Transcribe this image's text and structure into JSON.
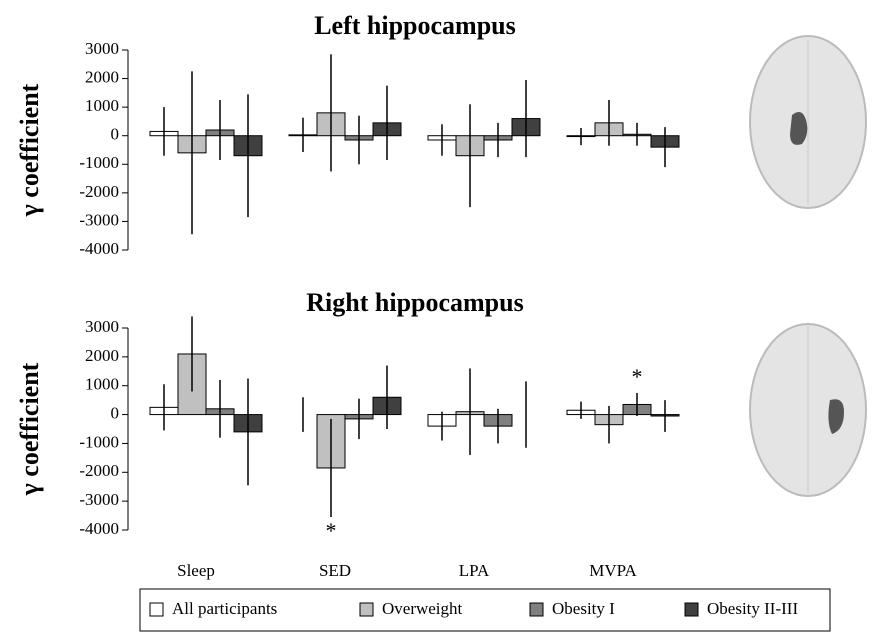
{
  "chart_data": [
    {
      "type": "bar",
      "title": "Left hippocampus",
      "ylabel": "γ coefficient",
      "ylim": [
        -4000,
        3000
      ],
      "yticks": [
        3000,
        2000,
        1000,
        0,
        -1000,
        -2000,
        -3000,
        -4000
      ],
      "series": [
        {
          "name": "All participants",
          "color": "#ffffff",
          "values": [
            150,
            30,
            -150,
            -30
          ],
          "errors": [
            850,
            600,
            550,
            300
          ]
        },
        {
          "name": "Overweight",
          "color": "#c0c0c0",
          "values": [
            -600,
            800,
            -700,
            450
          ],
          "errors": [
            2850,
            2050,
            1800,
            800
          ]
        },
        {
          "name": "Obesity I",
          "color": "#808080",
          "values": [
            200,
            -150,
            -150,
            50
          ],
          "errors": [
            1050,
            850,
            600,
            400
          ]
        },
        {
          "name": "Obesity II-III",
          "color": "#404040",
          "values": [
            -700,
            450,
            600,
            -400
          ],
          "errors": [
            2150,
            1300,
            1350,
            700
          ]
        }
      ]
    },
    {
      "type": "bar",
      "title": "Right hippocampus",
      "ylabel": "γ coefficient",
      "ylim": [
        -4000,
        3000
      ],
      "yticks": [
        3000,
        2000,
        1000,
        0,
        -1000,
        -2000,
        -3000,
        -4000
      ],
      "categories": [
        "Sleep",
        "SED",
        "LPA",
        "MVPA"
      ],
      "series": [
        {
          "values": [
            250,
            0,
            -400,
            150
          ],
          "errors": [
            800,
            600,
            500,
            300
          ]
        },
        {
          "values": [
            2100,
            -1850,
            100,
            -350
          ],
          "errors": [
            1300,
            1700,
            1500,
            650
          ]
        },
        {
          "values": [
            200,
            -150,
            -400,
            350
          ],
          "errors": [
            1000,
            700,
            600,
            400
          ]
        },
        {
          "values": [
            -600,
            600,
            0,
            -50
          ],
          "errors": [
            1850,
            1100,
            1150,
            550
          ]
        }
      ],
      "annotations": [
        {
          "text": "*",
          "category": "SED",
          "series": "Overweight"
        },
        {
          "text": "*",
          "category": "MVPA",
          "series": "Obesity I"
        }
      ]
    }
  ]
}
